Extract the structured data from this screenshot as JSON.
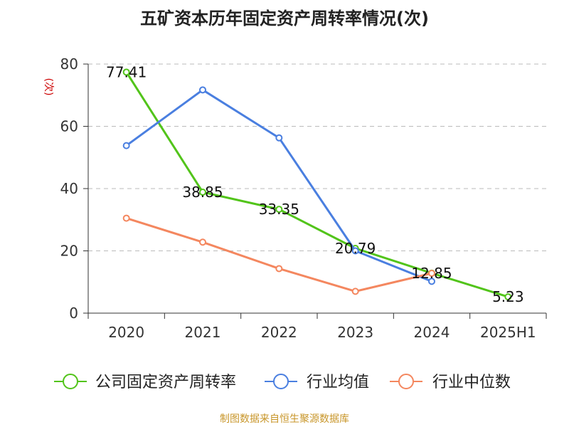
{
  "chart_data": {
    "type": "line",
    "title": "五矿资本历年固定资产周转率情况(次)",
    "ylabel": "(次)",
    "xlabel": "",
    "categories": [
      "2020",
      "2021",
      "2022",
      "2023",
      "2024",
      "2025H1"
    ],
    "ylim": [
      0,
      80
    ],
    "yticks": [
      0,
      20,
      40,
      60,
      80
    ],
    "grid": true,
    "legend_position": "bottom",
    "series": [
      {
        "name": "公司固定资产周转率",
        "values": [
          77.41,
          38.85,
          33.35,
          20.79,
          12.85,
          5.23
        ],
        "color": "#52c41a",
        "show_labels": true,
        "labels": [
          "77.41",
          "38.85",
          "33.35",
          "20.79",
          "12.85",
          "5.23"
        ]
      },
      {
        "name": "行业均值",
        "values": [
          53.8,
          71.7,
          56.3,
          20.0,
          10.2,
          null
        ],
        "color": "#4a7fe0",
        "show_labels": false
      },
      {
        "name": "行业中位数",
        "values": [
          30.5,
          22.8,
          14.3,
          7.0,
          12.8,
          null
        ],
        "color": "#f4875f",
        "show_labels": false
      }
    ],
    "source_note": "制图数据来自恒生聚源数据库",
    "colors": {
      "title": "#222222",
      "ylabel": "#cc0000",
      "axis": "#333333",
      "grid": "#bbbbbb",
      "source": "#c8962a"
    }
  }
}
